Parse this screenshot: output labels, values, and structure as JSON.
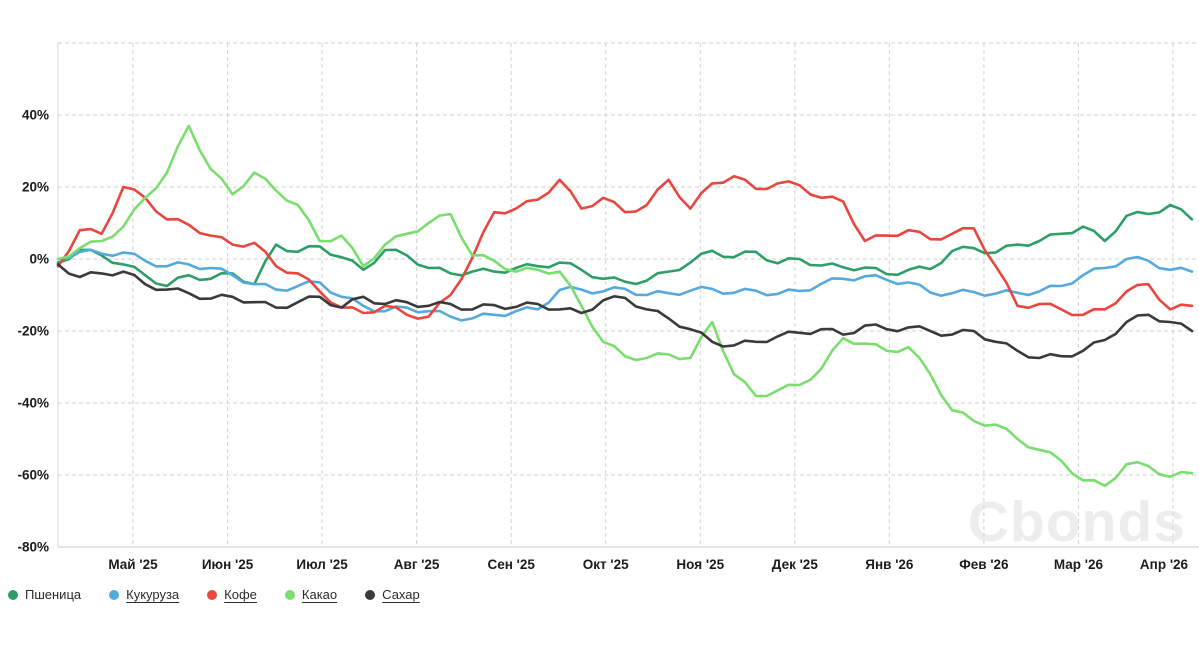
{
  "watermark": "Cbonds",
  "chart_data": {
    "type": "line",
    "title": "",
    "xlabel": "",
    "ylabel": "",
    "ylim": [
      -80,
      60
    ],
    "grid": "dashed",
    "legend_position": "bottom-left",
    "x_tick_labels": [
      "Май '25",
      "Июн '25",
      "Июл '25",
      "Авг '25",
      "Сен '25",
      "Окт '25",
      "Ноя '25",
      "Дек '25",
      "Янв '26",
      "Фев '26",
      "Мар '26",
      "Апр '26"
    ],
    "y_tick_labels": [
      "40%",
      "20%",
      "0%",
      "-20%",
      "-40%",
      "-60%",
      "-80%"
    ],
    "y_ticks": [
      40,
      20,
      0,
      -20,
      -40,
      -60,
      -80
    ],
    "y_gridlines": [
      60,
      40,
      20,
      0,
      -20,
      -40,
      -60,
      -80
    ],
    "unit": "percent",
    "series": [
      {
        "name": "Пшеница",
        "color": "#2e9e69",
        "legend_underlined": false,
        "values": [
          -1,
          2.5,
          1,
          -1.5,
          -4.5,
          -7.5,
          -4.5,
          -5.5,
          -4,
          -7,
          4,
          2,
          3.5,
          0.5,
          -3,
          2.5,
          1,
          -2.5,
          -4,
          -3.5,
          -3.5,
          -2.5,
          -2,
          -1,
          -3,
          -5.5,
          -6.3,
          -6,
          -3.5,
          -1,
          2.3,
          0.5,
          2,
          -1.2,
          0,
          -1.8,
          -2.3,
          -2.4,
          -4.2,
          -3,
          -2.8,
          2.2,
          3,
          1.8,
          4,
          5,
          7,
          9,
          5,
          12,
          12.5,
          15,
          11
        ]
      },
      {
        "name": "Кукуруза",
        "color": "#55a9dd",
        "legend_underlined": true,
        "values": [
          0,
          2,
          1.5,
          1.8,
          -0.5,
          -2,
          -1.5,
          -2.5,
          -4.5,
          -7,
          -8.5,
          -7.5,
          -6.5,
          -10.5,
          -13,
          -14.5,
          -13.5,
          -14.5,
          -16,
          -16.5,
          -15.5,
          -14.5,
          -14,
          -8.6,
          -8.5,
          -9,
          -8.3,
          -10,
          -9.5,
          -8.8,
          -8.3,
          -9.4,
          -8.8,
          -9.7,
          -8.9,
          -6.9,
          -5.5,
          -4.8,
          -5.8,
          -6.5,
          -9.3,
          -9.5,
          -9.2,
          -9.6,
          -9.4,
          -9,
          -7.5,
          -4.5,
          -2.5,
          0,
          -0.5,
          -3,
          -3.5
        ]
      },
      {
        "name": "Кофе",
        "color": "#e8463f",
        "legend_underlined": true,
        "values": [
          -2,
          8,
          7,
          20,
          17,
          11,
          9.5,
          6.5,
          4,
          4.5,
          -2,
          -4,
          -9,
          -13.5,
          -15,
          -13,
          -15.5,
          -16,
          -10,
          0.3,
          13,
          14,
          16.5,
          22,
          14,
          17,
          13,
          15,
          22,
          14,
          21,
          23,
          19.5,
          21,
          20.5,
          17,
          16,
          5,
          6.5,
          8,
          5.5,
          7,
          8.5,
          -2,
          -13,
          -12.5,
          -14,
          -15.5,
          -14,
          -9,
          -7,
          -14,
          -13
        ]
      },
      {
        "name": "Какао",
        "color": "#7ade6e",
        "legend_underlined": true,
        "values": [
          0,
          3,
          5,
          9,
          17,
          24,
          37,
          25,
          18,
          24,
          19,
          15,
          5,
          6.5,
          -2,
          4,
          7,
          10,
          12.5,
          1,
          -0.5,
          -3.5,
          -3,
          -3.5,
          -13,
          -23,
          -27,
          -27.5,
          -26.5,
          -27.5,
          -17.5,
          -32,
          -38,
          -36.5,
          -35,
          -30.5,
          -22,
          -23.5,
          -25.5,
          -24.5,
          -32,
          -42,
          -45,
          -46,
          -50,
          -53,
          -56,
          -61.5,
          -63,
          -57,
          -57.5,
          -60.5,
          -59.5
        ]
      },
      {
        "name": "Сахар",
        "color": "#3a3a3a",
        "legend_underlined": true,
        "values": [
          -1.5,
          -5,
          -4,
          -3.5,
          -7,
          -8.5,
          -9.5,
          -11,
          -10.5,
          -12,
          -13.5,
          -12,
          -10.5,
          -13.5,
          -10.5,
          -12.5,
          -12,
          -13,
          -12.5,
          -14,
          -12.8,
          -13.3,
          -12.5,
          -14,
          -15,
          -11.5,
          -10.8,
          -14,
          -16.5,
          -19.5,
          -23,
          -24,
          -23,
          -21.5,
          -20.5,
          -19.5,
          -21,
          -18.5,
          -19.5,
          -19,
          -20,
          -21,
          -20,
          -23,
          -25.5,
          -27.5,
          -27,
          -25.5,
          -22.5,
          -17.5,
          -15.5,
          -17.5,
          -20
        ]
      }
    ]
  }
}
